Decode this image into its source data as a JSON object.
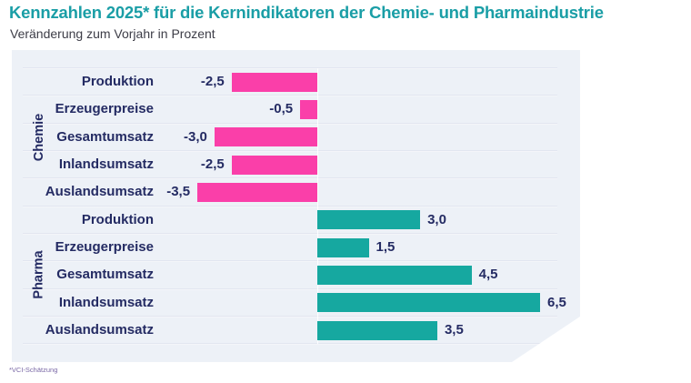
{
  "header": {
    "title": "Kennzahlen 2025* für die Kernindikatoren der Chemie- und Pharmaindustrie",
    "subtitle": "Veränderung zum Vorjahr in Prozent"
  },
  "footnote": {
    "text": "*VCI-Schätzung"
  },
  "colors": {
    "title": "#1a9ea6",
    "subtitle": "#3d3d47",
    "label_text": "#242b63",
    "chemie_bar": "#fa3fa9",
    "pharma_bar": "#16a8a0",
    "panel_bg": "#edf1f7",
    "footnote": "#7a68a6"
  },
  "chart_data": {
    "type": "bar",
    "orientation": "horizontal",
    "title": "Kennzahlen 2025* für die Kernindikatoren der Chemie- und Pharmaindustrie",
    "subtitle": "Veränderung zum Vorjahr in Prozent",
    "unit": "percent change vs. previous year",
    "value_format": "German decimal comma",
    "xlim": [
      -3.5,
      7.7
    ],
    "grid": false,
    "legend": "none",
    "groups": [
      {
        "name": "Chemie",
        "color": "#fa3fa9",
        "rows": [
          {
            "label": "Produktion",
            "value": -2.5,
            "display": "-2,5"
          },
          {
            "label": "Erzeugerpreise",
            "value": -0.5,
            "display": "-0,5"
          },
          {
            "label": "Gesamtumsatz",
            "value": -3.0,
            "display": "-3,0"
          },
          {
            "label": "Inlandsumsatz",
            "value": -2.5,
            "display": "-2,5"
          },
          {
            "label": "Auslandsumsatz",
            "value": -3.5,
            "display": "-3,5"
          }
        ]
      },
      {
        "name": "Pharma",
        "color": "#16a8a0",
        "rows": [
          {
            "label": "Produktion",
            "value": 3.0,
            "display": "3,0"
          },
          {
            "label": "Erzeugerpreise",
            "value": 1.5,
            "display": "1,5"
          },
          {
            "label": "Gesamtumsatz",
            "value": 4.5,
            "display": "4,5"
          },
          {
            "label": "Inlandsumsatz",
            "value": 6.5,
            "display": "6,5"
          },
          {
            "label": "Auslandsumsatz",
            "value": 3.5,
            "display": "3,5"
          }
        ]
      }
    ]
  }
}
